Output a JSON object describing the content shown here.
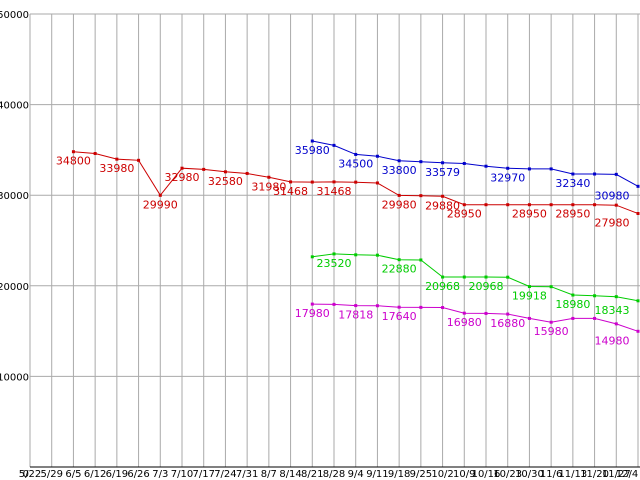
{
  "chart_data": {
    "type": "line",
    "title": "",
    "xlabel": "",
    "ylabel": "",
    "ylim": [
      0,
      50000
    ],
    "y_ticks": [
      0,
      10000,
      20000,
      30000,
      40000,
      50000
    ],
    "grid": true,
    "background_color": "#ffffff",
    "grid_color": "#aaaaaa",
    "axis_color": "#000000",
    "tick_label_color": "#000000",
    "x_labels": [
      "5/22",
      "5/29",
      "6/5",
      "6/12",
      "6/19",
      "6/26",
      "7/3",
      "7/10",
      "7/17",
      "7/24",
      "7/31",
      "8/7",
      "8/14",
      "8/21",
      "8/28",
      "9/4",
      "9/11",
      "9/18",
      "9/25",
      "10/2",
      "10/9",
      "10/16",
      "10/23",
      "10/30",
      "11/6",
      "11/13",
      "11/20",
      "11/27",
      "12/4"
    ],
    "series": [
      {
        "name": "blue",
        "color": "#0000cc",
        "points": [
          {
            "x": "8/21",
            "v": 35980,
            "label": "35980"
          },
          {
            "x": "8/28",
            "v": 35500
          },
          {
            "x": "9/4",
            "v": 34500,
            "label": "34500"
          },
          {
            "x": "9/11",
            "v": 34300
          },
          {
            "x": "9/18",
            "v": 33800,
            "label": "33800"
          },
          {
            "x": "9/25",
            "v": 33700
          },
          {
            "x": "10/2",
            "v": 33579,
            "label": "33579"
          },
          {
            "x": "10/9",
            "v": 33500
          },
          {
            "x": "10/16",
            "v": 33200
          },
          {
            "x": "10/23",
            "v": 32970,
            "label": "32970"
          },
          {
            "x": "10/30",
            "v": 32900
          },
          {
            "x": "11/6",
            "v": 32900
          },
          {
            "x": "11/13",
            "v": 32340,
            "label": "32340"
          },
          {
            "x": "11/20",
            "v": 32340
          },
          {
            "x": "11/27",
            "v": 32300
          },
          {
            "x": "12/4",
            "v": 30980,
            "label": "30980"
          }
        ]
      },
      {
        "name": "red",
        "color": "#cc0000",
        "points": [
          {
            "x": "6/5",
            "v": 34800,
            "label": "34800"
          },
          {
            "x": "6/12",
            "v": 34600
          },
          {
            "x": "6/19",
            "v": 33980,
            "label": "33980"
          },
          {
            "x": "6/26",
            "v": 33850
          },
          {
            "x": "7/3",
            "v": 29990,
            "label": "29990"
          },
          {
            "x": "7/10",
            "v": 32980,
            "label": "32980"
          },
          {
            "x": "7/17",
            "v": 32850
          },
          {
            "x": "7/24",
            "v": 32580,
            "label": "32580"
          },
          {
            "x": "7/31",
            "v": 32400
          },
          {
            "x": "8/7",
            "v": 31980,
            "label": "31980"
          },
          {
            "x": "8/14",
            "v": 31468,
            "label": "31468"
          },
          {
            "x": "8/21",
            "v": 31450
          },
          {
            "x": "8/28",
            "v": 31468,
            "label": "31468"
          },
          {
            "x": "9/4",
            "v": 31440
          },
          {
            "x": "9/11",
            "v": 31350
          },
          {
            "x": "9/18",
            "v": 29980,
            "label": "29980"
          },
          {
            "x": "9/25",
            "v": 29950
          },
          {
            "x": "10/2",
            "v": 29880,
            "label": "29880"
          },
          {
            "x": "10/9",
            "v": 28950,
            "label": "28950"
          },
          {
            "x": "10/16",
            "v": 28950
          },
          {
            "x": "10/23",
            "v": 28950
          },
          {
            "x": "10/30",
            "v": 28950,
            "label": "28950"
          },
          {
            "x": "11/6",
            "v": 28950
          },
          {
            "x": "11/13",
            "v": 28950,
            "label": "28950"
          },
          {
            "x": "11/20",
            "v": 28950
          },
          {
            "x": "11/27",
            "v": 28900
          },
          {
            "x": "12/4",
            "v": 27980,
            "label": "27980"
          }
        ]
      },
      {
        "name": "green",
        "color": "#00cc00",
        "points": [
          {
            "x": "8/21",
            "v": 23200
          },
          {
            "x": "8/28",
            "v": 23520,
            "label": "23520"
          },
          {
            "x": "9/4",
            "v": 23420
          },
          {
            "x": "9/11",
            "v": 23380
          },
          {
            "x": "9/18",
            "v": 22880,
            "label": "22880"
          },
          {
            "x": "9/25",
            "v": 22850
          },
          {
            "x": "10/2",
            "v": 20968,
            "label": "20968"
          },
          {
            "x": "10/9",
            "v": 20968
          },
          {
            "x": "10/16",
            "v": 20968,
            "label": "20968"
          },
          {
            "x": "10/23",
            "v": 20950
          },
          {
            "x": "10/30",
            "v": 19918,
            "label": "19918"
          },
          {
            "x": "11/6",
            "v": 19900
          },
          {
            "x": "11/13",
            "v": 18980,
            "label": "18980"
          },
          {
            "x": "11/20",
            "v": 18900
          },
          {
            "x": "11/27",
            "v": 18800
          },
          {
            "x": "12/4",
            "v": 18343,
            "label": "18343"
          }
        ]
      },
      {
        "name": "magenta",
        "color": "#cc00cc",
        "points": [
          {
            "x": "8/21",
            "v": 17980,
            "label": "17980"
          },
          {
            "x": "8/28",
            "v": 17950
          },
          {
            "x": "9/4",
            "v": 17818,
            "label": "17818"
          },
          {
            "x": "9/11",
            "v": 17800
          },
          {
            "x": "9/18",
            "v": 17640,
            "label": "17640"
          },
          {
            "x": "9/25",
            "v": 17620
          },
          {
            "x": "10/2",
            "v": 17600
          },
          {
            "x": "10/9",
            "v": 16980,
            "label": "16980"
          },
          {
            "x": "10/16",
            "v": 16950
          },
          {
            "x": "10/23",
            "v": 16880,
            "label": "16880"
          },
          {
            "x": "10/30",
            "v": 16400
          },
          {
            "x": "11/6",
            "v": 15980,
            "label": "15980"
          },
          {
            "x": "11/13",
            "v": 16400
          },
          {
            "x": "11/20",
            "v": 16400
          },
          {
            "x": "11/27",
            "v": 15800
          },
          {
            "x": "12/4",
            "v": 14980,
            "label": "14980"
          }
        ]
      }
    ]
  }
}
